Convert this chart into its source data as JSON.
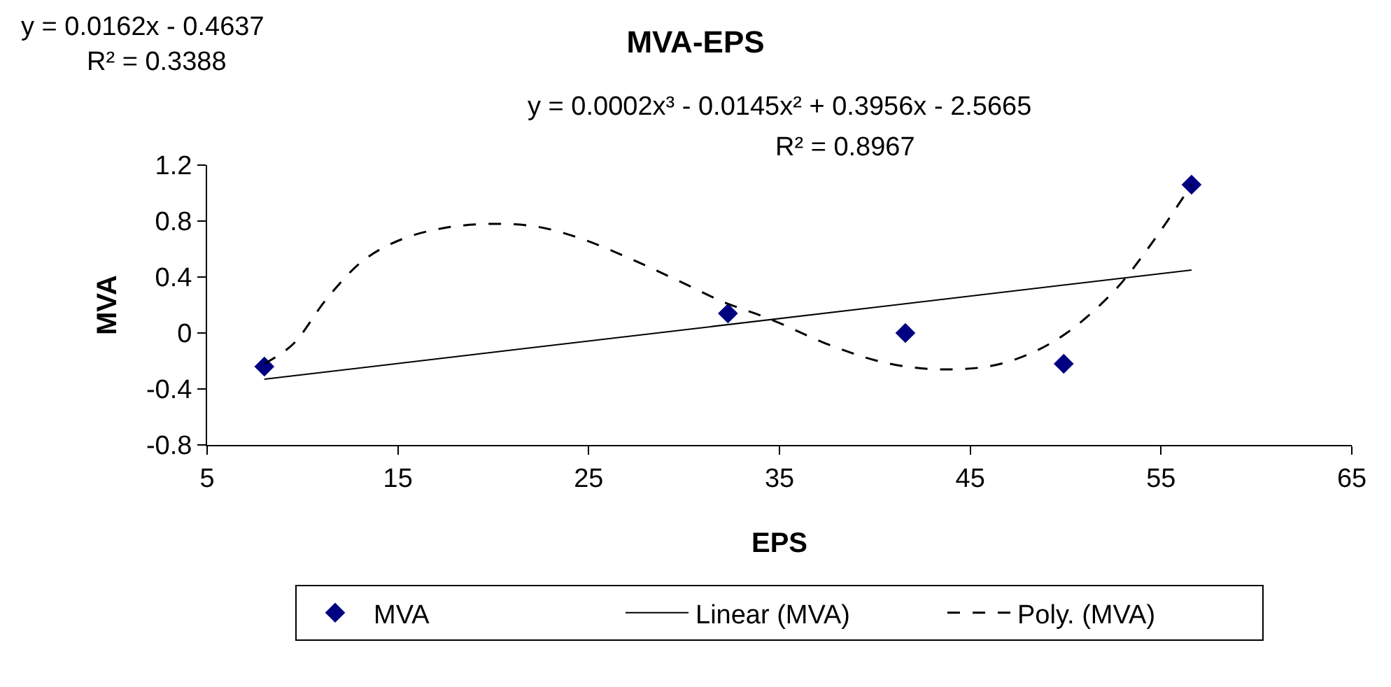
{
  "chart_data": {
    "type": "scatter",
    "title": "MVA-EPS",
    "xlabel": "EPS",
    "ylabel": "MVA",
    "xlim": [
      5,
      65
    ],
    "xticks": [
      5,
      15,
      25,
      35,
      45,
      55,
      65
    ],
    "ylim": [
      -0.8,
      1.2
    ],
    "yticks": [
      -0.8,
      -0.4,
      0,
      0.4,
      0.8,
      1.2
    ],
    "legend": "bottom",
    "annotations": [
      "y = 0.0162x - 0.4637",
      "R² = 0.3388",
      "y = 0.0002x³ - 0.0145x² + 0.3956x - 2.5665",
      "R² = 0.8967"
    ],
    "series": [
      {
        "name": "MVA",
        "marker": "diamond",
        "color": "#000080",
        "x": [
          8.0,
          32.3,
          41.6,
          49.9,
          56.6
        ],
        "values": [
          -0.24,
          0.14,
          0.0,
          -0.22,
          1.06
        ]
      },
      {
        "name": "Linear (MVA)",
        "type": "line",
        "marker": "none",
        "line_style": "solid",
        "color": "#000000",
        "x": [
          8.0,
          56.6
        ],
        "values": [
          -0.33,
          0.45
        ]
      },
      {
        "name": "Poly. (MVA)",
        "type": "line",
        "marker": "none",
        "line_style": "dashed",
        "color": "#000000",
        "x": [
          8.0,
          9.5,
          11.3,
          13.2,
          15.2,
          17.4,
          19.8,
          22.3,
          24.7,
          27.2,
          29.6,
          32.1,
          34.5,
          37.9,
          40.8,
          43.7,
          46.6,
          49.5,
          52.4,
          54.4,
          56.6
        ],
        "values": [
          -0.22,
          -0.08,
          0.25,
          0.52,
          0.67,
          0.75,
          0.78,
          0.76,
          0.67,
          0.53,
          0.38,
          0.22,
          0.1,
          -0.1,
          -0.22,
          -0.26,
          -0.22,
          -0.05,
          0.28,
          0.62,
          1.06
        ]
      }
    ]
  }
}
